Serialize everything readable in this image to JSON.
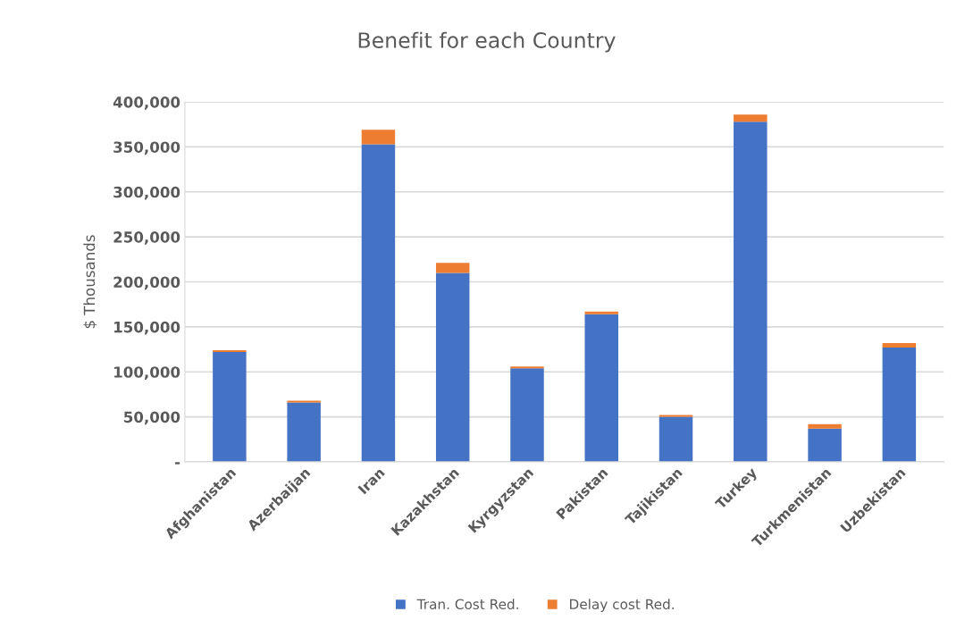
{
  "chart_data": {
    "type": "bar",
    "title": "Benefit for each Country",
    "ylabel": "$ Thousands",
    "categories": [
      "Afghanistan",
      "Azerbaijan",
      "Iran",
      "Kazakhstan",
      "Kyrgyzstan",
      "Pakistan",
      "Tajikistan",
      "Turkey",
      "Turkmenistan",
      "Uzbekistan"
    ],
    "stacked": true,
    "series": [
      {
        "name": "Tran. Cost Red.",
        "color": "#4472c4",
        "values": [
          122000,
          66000,
          353000,
          210000,
          104000,
          164000,
          50000,
          378000,
          37000,
          127000
        ]
      },
      {
        "name": "Delay cost Red.",
        "color": "#ed7d31",
        "values": [
          2000,
          2000,
          16000,
          11000,
          2000,
          3000,
          2000,
          8000,
          5000,
          5000
        ]
      }
    ],
    "ylim": [
      0,
      400000
    ],
    "yticks": [
      {
        "value": 0,
        "label": "-"
      },
      {
        "value": 50000,
        "label": "50,000"
      },
      {
        "value": 100000,
        "label": "100,000"
      },
      {
        "value": 150000,
        "label": "150,000"
      },
      {
        "value": 200000,
        "label": "200,000"
      },
      {
        "value": 250000,
        "label": "250,000"
      },
      {
        "value": 300000,
        "label": "300,000"
      },
      {
        "value": 350000,
        "label": "350,000"
      },
      {
        "value": 400000,
        "label": "400,000"
      }
    ],
    "grid": "y",
    "legend": "bottom"
  }
}
